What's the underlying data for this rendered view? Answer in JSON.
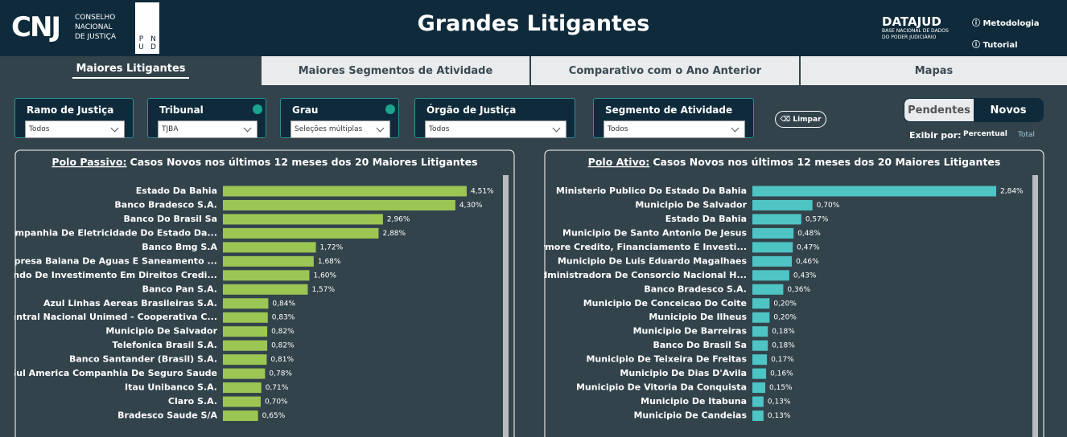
{
  "header": {
    "org_short": "CNJ",
    "org_name": [
      "CONSELHO",
      "NACIONAL",
      "DE JUSTIÇA"
    ],
    "pnud": [
      "P",
      "N",
      "U",
      "D"
    ],
    "title": "Grandes Litigantes",
    "datajud": "DATAJUD",
    "datajud_sub": [
      "BASE NACIONAL DE DADOS",
      "DO PODER JUDICIÁRIO"
    ],
    "links": [
      "Metodologia",
      "Tutorial"
    ]
  },
  "tabs": [
    "Maiores Litigantes",
    "Maiores Segmentos de Atividade",
    "Comparativo com o Ano Anterior",
    "Mapas"
  ],
  "filters": [
    {
      "label": "Ramo de Justiça",
      "value": "Todos"
    },
    {
      "label": "Tribunal",
      "value": "TJBA"
    },
    {
      "label": "Grau",
      "value": "Seleções múltiplas"
    },
    {
      "label": "Órgão de Justiça",
      "value": "Todos"
    },
    {
      "label": "Segmento de Atividade",
      "value": "Todos"
    }
  ],
  "clear_button": "Limpar",
  "toggle": [
    "Pendentes",
    "Novos"
  ],
  "display": {
    "label": "Exibir por:",
    "options": [
      "Percentual",
      "Total"
    ]
  },
  "chart_data": [
    {
      "type": "bar",
      "orientation": "horizontal",
      "title_lead": "Polo Passivo:",
      "title": "Casos Novos nos últimos 12 meses dos 20 Maiores Litigantes",
      "color": "#9cc654",
      "categories": [
        "Estado Da Bahia",
        "Banco Bradesco S.A.",
        "Banco Do Brasil Sa",
        "Companhia De Eletricidade Do Estado Da...",
        "Banco Bmg S.A",
        "Empresa Baiana De Aguas E Saneamento ...",
        "Fundo De Investimento Em Direitos Credi...",
        "Banco Pan S.A.",
        "Azul Linhas Aereas Brasileiras S.A.",
        "Central Nacional Unimed - Cooperativa C...",
        "Municipio De Salvador",
        "Telefonica Brasil S.A.",
        "Banco Santander (Brasil) S.A.",
        "Sul America Companhia De Seguro Saude",
        "Itau Unibanco S.A.",
        "Claro S.A.",
        "Bradesco Saude S/A"
      ],
      "values": [
        4.51,
        4.3,
        2.96,
        2.88,
        1.72,
        1.68,
        1.6,
        1.57,
        0.84,
        0.83,
        0.82,
        0.82,
        0.81,
        0.78,
        0.71,
        0.7,
        0.65
      ],
      "value_labels": [
        "4,51%",
        "4,30%",
        "2,96%",
        "2,88%",
        "1,72%",
        "1,68%",
        "1,60%",
        "1,57%",
        "0,84%",
        "0,83%",
        "0,82%",
        "0,82%",
        "0,81%",
        "0,78%",
        "0,71%",
        "0,70%",
        "0,65%"
      ]
    },
    {
      "type": "bar",
      "orientation": "horizontal",
      "title_lead": "Polo Ativo:",
      "title": "Casos Novos nos últimos 12 meses dos 20 Maiores Litigantes",
      "color": "#4ec4c4",
      "categories": [
        "Ministerio Publico Do Estado Da Bahia",
        "Municipio De Salvador",
        "Estado Da Bahia",
        "Municipio De Santo Antonio De Jesus",
        "Aymore Credito, Financiamento E Investi...",
        "Municipio De Luis Eduardo Magalhaes",
        "Administradora De Consorcio Nacional H...",
        "Banco Bradesco S.A.",
        "Municipio De Conceicao Do Coite",
        "Municipio De Ilheus",
        "Municipio De Barreiras",
        "Banco Do Brasil Sa",
        "Municipio De Teixeira De Freitas",
        "Municipio De Dias D'Avila",
        "Municipio De Vitoria Da Conquista",
        "Municipio De Itabuna",
        "Municipio De Candeias"
      ],
      "values": [
        2.84,
        0.7,
        0.57,
        0.48,
        0.47,
        0.46,
        0.43,
        0.36,
        0.2,
        0.2,
        0.18,
        0.18,
        0.17,
        0.16,
        0.15,
        0.13,
        0.13
      ],
      "value_labels": [
        "2,84%",
        "0,70%",
        "0,57%",
        "0,48%",
        "0,47%",
        "0,46%",
        "0,43%",
        "0,36%",
        "0,20%",
        "0,20%",
        "0,18%",
        "0,18%",
        "0,17%",
        "0,16%",
        "0,15%",
        "0,13%",
        "0,13%"
      ]
    }
  ]
}
